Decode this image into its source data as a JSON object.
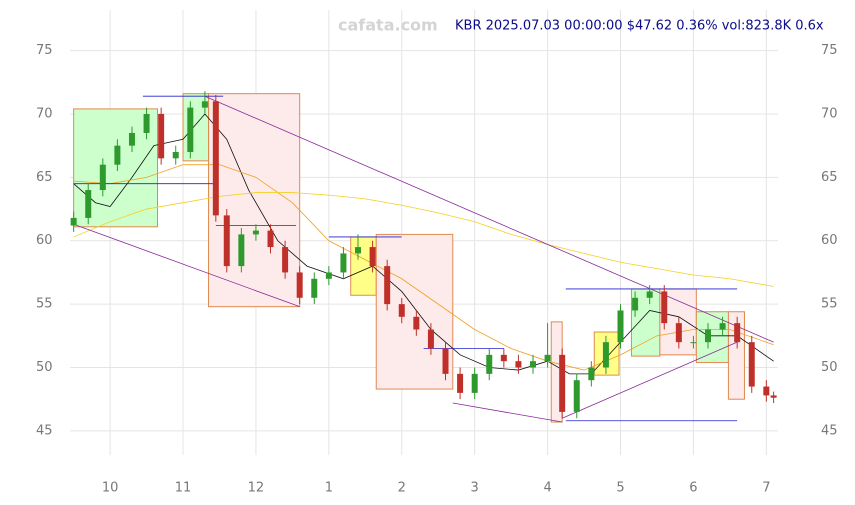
{
  "chart_data": {
    "type": "candlestick",
    "watermark": "cafata.com",
    "title": "KBR 2025.07.03 00:00:00 $47.62 0.36% vol:823.8K 0.6x",
    "xlim": [
      9.45,
      19.16
    ],
    "xticks": [
      10,
      11,
      12,
      {
        "value": 13,
        "label": "1"
      },
      {
        "value": 14,
        "label": "2"
      },
      {
        "value": 15,
        "label": "3"
      },
      {
        "value": 16,
        "label": "4"
      },
      {
        "value": 17,
        "label": "5"
      },
      {
        "value": 18,
        "label": "6"
      },
      {
        "value": 19,
        "label": "7"
      }
    ],
    "ylim": [
      43.1,
      78.2
    ],
    "yticks": [
      45,
      50,
      55,
      60,
      65,
      70,
      75
    ],
    "grid": true,
    "up_color": "#2e9a2e",
    "down_color": "#c0302a",
    "candles": {
      "x": [
        9.5,
        9.7,
        9.9,
        10.1,
        10.3,
        10.5,
        10.7,
        10.9,
        11.1,
        11.3,
        11.45,
        11.6,
        11.8,
        12.0,
        12.2,
        12.4,
        12.6,
        12.8,
        13.0,
        13.2,
        13.4,
        13.6,
        13.8,
        14.0,
        14.2,
        14.4,
        14.6,
        14.8,
        15.0,
        15.2,
        15.4,
        15.6,
        15.8,
        16.0,
        16.2,
        16.4,
        16.6,
        16.8,
        17.0,
        17.2,
        17.4,
        17.6,
        17.8,
        18.0,
        18.2,
        18.4,
        18.6,
        18.8,
        19.0,
        19.1
      ],
      "open": [
        61.2,
        61.8,
        64,
        66,
        67.5,
        68.5,
        70,
        66.5,
        67,
        70.5,
        71,
        62,
        58,
        60.5,
        60.8,
        59.5,
        57.5,
        55.5,
        57,
        57.5,
        59,
        59.5,
        58,
        55,
        54,
        53,
        51.5,
        49.5,
        48,
        49.5,
        51,
        50.5,
        50,
        50.5,
        51,
        46.5,
        49,
        50,
        52,
        54.5,
        55.5,
        56,
        53.5,
        52,
        52,
        53,
        53.5,
        52,
        48.5,
        47.8
      ],
      "high": [
        62.3,
        64.5,
        66.5,
        68,
        69,
        70.5,
        70.5,
        67.5,
        71,
        71.8,
        71.5,
        62.5,
        61,
        61.3,
        61.3,
        60,
        58,
        57.5,
        58,
        59.5,
        60.5,
        60,
        58.5,
        55.5,
        54.5,
        53.5,
        52,
        50,
        50,
        51.5,
        51.5,
        51,
        51,
        53.5,
        51.5,
        49.5,
        50.5,
        52.5,
        55,
        56,
        56.5,
        56.5,
        54,
        52.5,
        53.5,
        54,
        54,
        52.5,
        49,
        48.1
      ],
      "low": [
        60.7,
        61.3,
        63.5,
        65.5,
        67,
        68,
        66,
        66,
        66.5,
        70,
        61.5,
        57.5,
        57.5,
        60,
        59,
        57,
        55,
        55,
        56.5,
        57,
        58.5,
        57.5,
        54.5,
        53.5,
        52.5,
        51,
        49,
        47.5,
        47.5,
        49,
        50,
        49.5,
        49.5,
        50,
        46,
        46,
        48.5,
        49.5,
        51.5,
        54,
        55,
        53,
        51.5,
        51.5,
        51.5,
        52.5,
        51.5,
        48,
        47.3,
        47.2
      ],
      "close": [
        61.8,
        64,
        66,
        67.5,
        68.5,
        70,
        66.5,
        67,
        70.5,
        71,
        62,
        58,
        60.5,
        60.8,
        59.5,
        57.5,
        55.5,
        57,
        57.5,
        59,
        59.5,
        58,
        55,
        54,
        53,
        51.5,
        49.5,
        48,
        49.5,
        51,
        50.5,
        50,
        50.5,
        51,
        46.5,
        49,
        50,
        52,
        54.5,
        55.5,
        56,
        53.5,
        52,
        52,
        53,
        53.5,
        52,
        48.5,
        47.8,
        47.62
      ]
    },
    "boxes": [
      {
        "x": [
          9.5,
          10.65
        ],
        "y": [
          61.1,
          70.4
        ],
        "color": "#ccffcc"
      },
      {
        "x": [
          11.0,
          11.35
        ],
        "y": [
          66.3,
          71.6
        ],
        "color": "#ccffcc"
      },
      {
        "x": [
          11.35,
          12.6
        ],
        "y": [
          54.8,
          71.6
        ],
        "color": "#fdeaea"
      },
      {
        "x": [
          13.3,
          13.65
        ],
        "y": [
          55.7,
          60.3
        ],
        "color": "#ffff88"
      },
      {
        "x": [
          13.65,
          14.7
        ],
        "y": [
          48.3,
          60.5
        ],
        "color": "#fdeaea"
      },
      {
        "x": [
          16.05,
          16.2
        ],
        "y": [
          45.7,
          53.6
        ],
        "color": "#fdeaea"
      },
      {
        "x": [
          16.64,
          16.98
        ],
        "y": [
          49.4,
          52.8
        ],
        "color": "#ffff88"
      },
      {
        "x": [
          17.15,
          17.54
        ],
        "y": [
          50.9,
          56.2
        ],
        "color": "#ccffcc"
      },
      {
        "x": [
          17.54,
          18.04
        ],
        "y": [
          51,
          56.2
        ],
        "color": "#fdeaea"
      },
      {
        "x": [
          18.04,
          18.48
        ],
        "y": [
          50.4,
          54.4
        ],
        "color": "#ccffcc"
      },
      {
        "x": [
          18.48,
          18.7
        ],
        "y": [
          47.5,
          54.4
        ],
        "color": "#fdeaea"
      }
    ],
    "lines": [
      {
        "color": "#111111",
        "x": [
          9.5,
          9.8,
          10.0,
          10.3,
          10.6,
          11.0,
          11.3,
          11.6,
          11.9,
          12.3,
          12.7,
          13.2,
          13.6,
          14.0,
          14.4,
          14.8,
          15.2,
          15.6,
          16.0,
          16.3,
          16.6,
          17.0,
          17.4,
          17.8,
          18.2,
          18.6,
          19.1
        ],
        "values": [
          64.5,
          63,
          62.7,
          65,
          67.5,
          68,
          70,
          68,
          64,
          60,
          58,
          57,
          58,
          56,
          53,
          51,
          50,
          49.8,
          50.5,
          49.5,
          49.5,
          52,
          54.5,
          54,
          52.5,
          52.5,
          50.5
        ]
      },
      {
        "color": "#f0a020",
        "x": [
          9.5,
          10.0,
          10.5,
          11.0,
          11.5,
          12.0,
          12.5,
          13.0,
          13.5,
          14.0,
          14.5,
          15.0,
          15.5,
          16.0,
          16.5,
          17.0,
          17.5,
          18.0,
          18.5,
          19.1
        ],
        "values": [
          64.7,
          64.5,
          65,
          66,
          66,
          65,
          63,
          60,
          58.5,
          57,
          55,
          53,
          51.5,
          50.5,
          49.8,
          51,
          52.5,
          53,
          53,
          51.8
        ]
      },
      {
        "color": "#f5d020",
        "x": [
          9.5,
          10.0,
          10.5,
          11.0,
          11.5,
          12.0,
          12.5,
          13.0,
          13.5,
          14.0,
          14.5,
          15.0,
          15.5,
          16.0,
          16.5,
          17.0,
          17.5,
          18.0,
          18.5,
          19.1
        ],
        "values": [
          60.3,
          61.5,
          62.5,
          63,
          63.5,
          63.8,
          63.8,
          63.6,
          63.3,
          62.8,
          62.2,
          61.5,
          60.5,
          59.7,
          59,
          58.3,
          57.8,
          57.3,
          57,
          56.4
        ]
      },
      {
        "color": "#8a2a9a",
        "x": [
          9.5,
          12.6
        ],
        "values": [
          61.3,
          54.8
        ]
      },
      {
        "color": "#8a2a9a",
        "x": [
          11.3,
          19.1
        ],
        "values": [
          71.4,
          52
        ]
      },
      {
        "color": "#8a2a9a",
        "x": [
          14.7,
          16.2
        ],
        "values": [
          47.2,
          45.7
        ]
      },
      {
        "color": "#8a2a9a",
        "x": [
          16.2,
          18.6
        ],
        "values": [
          46,
          52
        ]
      },
      {
        "color": "#2222cc",
        "x": [
          10.45,
          11.55
        ],
        "values": [
          71.4,
          71.4
        ]
      },
      {
        "color": "#2222cc",
        "x": [
          9.5,
          11.45
        ],
        "values": [
          64.5,
          64.5
        ]
      },
      {
        "color": "#2222cc",
        "x": [
          11.45,
          12.55
        ],
        "values": [
          61.2,
          61.2
        ]
      },
      {
        "color": "#2222cc",
        "x": [
          13.0,
          14.0
        ],
        "values": [
          60.3,
          60.3
        ]
      },
      {
        "color": "#2222cc",
        "x": [
          14.3,
          15.4
        ],
        "values": [
          51.5,
          51.5
        ]
      },
      {
        "color": "#2222cc",
        "x": [
          16.25,
          18.6
        ],
        "values": [
          56.2,
          56.2
        ]
      },
      {
        "color": "#2222cc",
        "x": [
          16.25,
          18.6
        ],
        "values": [
          45.8,
          45.8
        ]
      }
    ]
  }
}
